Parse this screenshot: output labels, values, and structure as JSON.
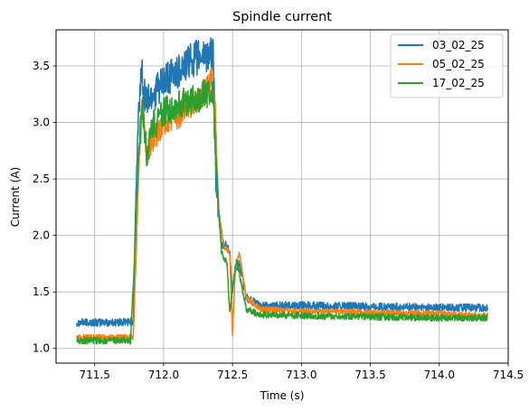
{
  "chart_data": {
    "type": "line",
    "title": "Spindle current",
    "xlabel": "Time (s)",
    "ylabel": "Current (A)",
    "xlim": [
      711.22,
      714.5
    ],
    "ylim": [
      0.87,
      3.82
    ],
    "xticks": [
      711.5,
      712.0,
      712.5,
      713.0,
      713.5,
      714.0,
      714.5
    ],
    "xtick_labels": [
      "711.5",
      "712.0",
      "712.5",
      "713.0",
      "713.5",
      "714.0",
      "714.5"
    ],
    "yticks": [
      1.0,
      1.5,
      2.0,
      2.5,
      3.0,
      3.5
    ],
    "ytick_labels": [
      "1.0",
      "1.5",
      "2.0",
      "2.5",
      "3.0",
      "3.5"
    ],
    "grid": true,
    "legend_position": "upper right",
    "series": [
      {
        "name": "03_02_25",
        "color": "#1f77b4",
        "noise": 0.035,
        "x": [
          711.37,
          711.5,
          711.6,
          711.7,
          711.78,
          711.8,
          711.82,
          711.84,
          711.86,
          711.88,
          711.92,
          712.0,
          712.1,
          712.2,
          712.3,
          712.36,
          712.38,
          712.42,
          712.46,
          712.48,
          712.5,
          712.52,
          712.55,
          712.6,
          712.7,
          713.0,
          713.5,
          714.0,
          714.35
        ],
        "y": [
          1.23,
          1.23,
          1.23,
          1.23,
          1.24,
          2.4,
          3.1,
          3.5,
          3.25,
          3.2,
          3.25,
          3.35,
          3.45,
          3.55,
          3.6,
          3.6,
          2.5,
          1.9,
          1.92,
          1.85,
          1.5,
          1.7,
          1.75,
          1.45,
          1.38,
          1.38,
          1.37,
          1.36,
          1.36
        ]
      },
      {
        "name": "05_02_25",
        "color": "#ff7f0e",
        "noise": 0.025,
        "x": [
          711.37,
          711.5,
          711.6,
          711.7,
          711.78,
          711.8,
          711.82,
          711.84,
          711.86,
          711.88,
          711.9,
          711.95,
          712.0,
          712.1,
          712.2,
          712.3,
          712.35,
          712.38,
          712.4,
          712.44,
          712.48,
          712.5,
          712.52,
          712.55,
          712.6,
          712.7,
          713.0,
          713.5,
          714.0,
          714.35
        ],
        "y": [
          1.1,
          1.1,
          1.1,
          1.1,
          1.1,
          1.8,
          2.6,
          3.15,
          3.0,
          2.65,
          2.8,
          2.9,
          3.0,
          3.05,
          3.15,
          3.25,
          3.4,
          3.0,
          2.2,
          1.9,
          1.85,
          1.12,
          1.7,
          1.85,
          1.45,
          1.35,
          1.33,
          1.32,
          1.31,
          1.29
        ]
      },
      {
        "name": "17_02_25",
        "color": "#2ca02c",
        "noise": 0.03,
        "x": [
          711.37,
          711.5,
          711.6,
          711.7,
          711.76,
          711.79,
          711.81,
          711.83,
          711.85,
          711.88,
          711.91,
          711.95,
          712.0,
          712.1,
          712.2,
          712.3,
          712.36,
          712.38,
          712.42,
          712.46,
          712.48,
          712.5,
          712.53,
          712.56,
          712.6,
          712.7,
          713.0,
          713.5,
          714.0,
          714.35
        ],
        "y": [
          1.07,
          1.07,
          1.07,
          1.07,
          1.07,
          1.8,
          2.5,
          2.9,
          3.1,
          2.7,
          2.95,
          3.0,
          3.1,
          3.15,
          3.2,
          3.25,
          3.25,
          2.6,
          1.85,
          1.75,
          1.3,
          1.55,
          1.78,
          1.6,
          1.35,
          1.3,
          1.29,
          1.28,
          1.27,
          1.27
        ]
      }
    ]
  }
}
